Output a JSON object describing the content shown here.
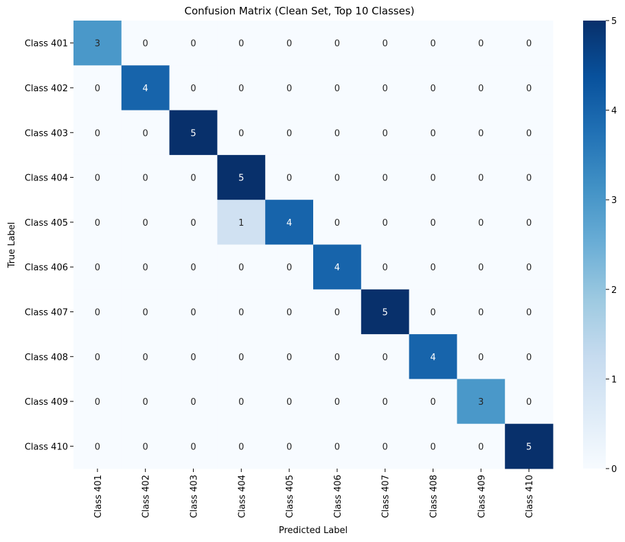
{
  "chart_data": {
    "type": "heatmap",
    "title": "Confusion Matrix (Clean Set, Top 10 Classes)",
    "xlabel": "Predicted Label",
    "ylabel": "True Label",
    "x_categories": [
      "Class 401",
      "Class 402",
      "Class 403",
      "Class 404",
      "Class 405",
      "Class 406",
      "Class 407",
      "Class 408",
      "Class 409",
      "Class 410"
    ],
    "y_categories": [
      "Class 401",
      "Class 402",
      "Class 403",
      "Class 404",
      "Class 405",
      "Class 406",
      "Class 407",
      "Class 408",
      "Class 409",
      "Class 410"
    ],
    "values": [
      [
        3,
        0,
        0,
        0,
        0,
        0,
        0,
        0,
        0,
        0
      ],
      [
        0,
        4,
        0,
        0,
        0,
        0,
        0,
        0,
        0,
        0
      ],
      [
        0,
        0,
        5,
        0,
        0,
        0,
        0,
        0,
        0,
        0
      ],
      [
        0,
        0,
        0,
        5,
        0,
        0,
        0,
        0,
        0,
        0
      ],
      [
        0,
        0,
        0,
        1,
        4,
        0,
        0,
        0,
        0,
        0
      ],
      [
        0,
        0,
        0,
        0,
        0,
        4,
        0,
        0,
        0,
        0
      ],
      [
        0,
        0,
        0,
        0,
        0,
        0,
        5,
        0,
        0,
        0
      ],
      [
        0,
        0,
        0,
        0,
        0,
        0,
        0,
        4,
        0,
        0
      ],
      [
        0,
        0,
        0,
        0,
        0,
        0,
        0,
        0,
        3,
        0
      ],
      [
        0,
        0,
        0,
        0,
        0,
        0,
        0,
        0,
        0,
        5
      ]
    ],
    "colorbar": {
      "min": 0,
      "max": 5,
      "ticks": [
        "0",
        "1",
        "2",
        "3",
        "4",
        "5"
      ]
    },
    "colormap": {
      "name": "Blues",
      "stops": [
        "#f7fbff",
        "#deebf7",
        "#c6dbef",
        "#9ecae1",
        "#6baed6",
        "#4292c6",
        "#2171b5",
        "#08519c",
        "#08306b"
      ]
    },
    "annotations": true,
    "grid": false
  }
}
